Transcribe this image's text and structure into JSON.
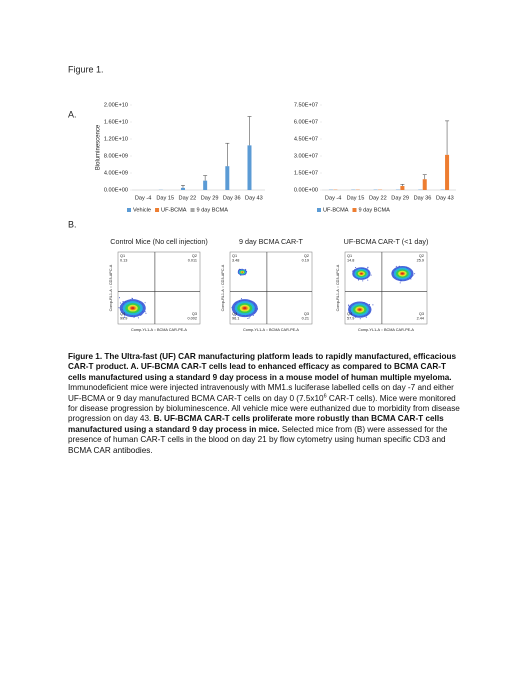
{
  "figure_label": "Figure 1.",
  "panels": {
    "a": "A.",
    "b": "B."
  },
  "chart_data": [
    {
      "type": "bar",
      "y_label": "Bioluminescence",
      "categories": [
        "Day -4",
        "Day 15",
        "Day 22",
        "Day 29",
        "Day 36",
        "Day 43"
      ],
      "series": [
        {
          "name": "Vehicle",
          "color": "#5b9bd5",
          "values": [
            0,
            50000000,
            500000000,
            2200000000,
            5600000000,
            10500000000
          ],
          "errors": [
            null,
            null,
            600000000,
            1200000000,
            5400000000,
            6800000000
          ]
        },
        {
          "name": "UF-BCMA",
          "color": "#ed7d31",
          "values": [
            0,
            0,
            0,
            0,
            0,
            0
          ],
          "errors": [
            null,
            null,
            null,
            null,
            null,
            null
          ]
        },
        {
          "name": "9 day BCMA",
          "color": "#a5a5a5",
          "values": [
            0,
            0,
            0,
            0,
            0,
            0
          ],
          "errors": [
            null,
            null,
            null,
            null,
            null,
            null
          ]
        }
      ],
      "ylim": [
        0,
        20000000000
      ],
      "yticks": [
        {
          "value": 0,
          "label": "0.00E+00"
        },
        {
          "value": 4000000000,
          "label": "4.00E+09"
        },
        {
          "value": 8000000000,
          "label": "8.00E+09"
        },
        {
          "value": 12000000000,
          "label": "1.20E+10"
        },
        {
          "value": 16000000000,
          "label": "1.60E+10"
        },
        {
          "value": 20000000000,
          "label": "2.00E+10"
        }
      ],
      "legend": "bottom"
    },
    {
      "type": "bar",
      "categories": [
        "Day -4",
        "Day 15",
        "Day 22",
        "Day 29",
        "Day 36",
        "Day 43"
      ],
      "series": [
        {
          "name": "UF-BCMA",
          "color": "#5b9bd5",
          "values": [
            300000,
            300000,
            300000,
            300000,
            300000,
            300000
          ],
          "errors": [
            null,
            null,
            null,
            null,
            null,
            null
          ]
        },
        {
          "name": "9 day BCMA",
          "color": "#ed7d31",
          "values": [
            300000,
            300000,
            300000,
            3500000,
            9500000,
            31000000
          ],
          "errors": [
            null,
            null,
            null,
            1500000,
            4000000,
            30000000
          ]
        }
      ],
      "ylim": [
        0,
        75000000
      ],
      "yticks": [
        {
          "value": 0,
          "label": "0.00E+00"
        },
        {
          "value": 15000000,
          "label": "1.50E+07"
        },
        {
          "value": 30000000,
          "label": "3.00E+07"
        },
        {
          "value": 45000000,
          "label": "4.50E+07"
        },
        {
          "value": 60000000,
          "label": "6.00E+07"
        },
        {
          "value": 75000000,
          "label": "7.50E+07"
        }
      ],
      "legend": "bottom"
    }
  ],
  "flow_plots": {
    "x_label": "Comp-YL1-A :: BCMA CAR-PE-A",
    "y_label": "Comp-RL1-A :: CD3-APC-A",
    "plots": [
      {
        "title": "Control Mice (No cell injection)",
        "quadrants": [
          {
            "name": "Q1",
            "value": "0.13"
          },
          {
            "name": "Q2",
            "value": "0.011"
          },
          {
            "name": "Q3",
            "value": "0.002"
          },
          {
            "name": "Q4",
            "value": "99.9"
          }
        ]
      },
      {
        "title": "9 day BCMA CAR-T",
        "quadrants": [
          {
            "name": "Q1",
            "value": "3.48"
          },
          {
            "name": "Q2",
            "value": "0.19"
          },
          {
            "name": "Q3",
            "value": "0.21"
          },
          {
            "name": "Q4",
            "value": "96.1"
          }
        ]
      },
      {
        "title": "UF-BCMA CAR-T (<1 day)",
        "quadrants": [
          {
            "name": "Q1",
            "value": "14.8"
          },
          {
            "name": "Q2",
            "value": "25.9"
          },
          {
            "name": "Q3",
            "value": "2.44"
          },
          {
            "name": "Q4",
            "value": "57.9"
          }
        ]
      }
    ]
  },
  "caption": [
    {
      "text": "Figure 1. The Ultra-fast (UF) CAR manufacturing platform leads to rapidly manufactured, efficacious CAR-T product. A. UF-BCMA CAR-T cells lead to enhanced efficacy as compared to BCMA CAR-T cells manufactured using a standard 9 day process in a mouse model of human multiple myeloma.",
      "bold": true
    },
    {
      "text": " Immunodeficient mice were injected intravenously with MM1.s luciferase labelled cells on day -7 and either UF-BCMA or 9 day manufactured BCMA CAR-T cells on day 0 (7.5x10",
      "bold": false
    },
    {
      "text": "6",
      "bold": false,
      "sup": true
    },
    {
      "text": " CAR-T cells).  Mice were monitored for disease progression by bioluminescence. All vehicle mice were euthanized due to morbidity from disease progression on day 43. ",
      "bold": false
    },
    {
      "text": "B. UF-BCMA CAR-T cells proliferate more robustly than BCMA CAR-T cells manufactured using a standard 9 day process in mice.",
      "bold": true
    },
    {
      "text": " Selected mice from (B) were assessed for the presence of human CAR-T cells in the blood on day 21 by flow cytometry using human specific CD3 and BCMA CAR antibodies.",
      "bold": false
    }
  ]
}
